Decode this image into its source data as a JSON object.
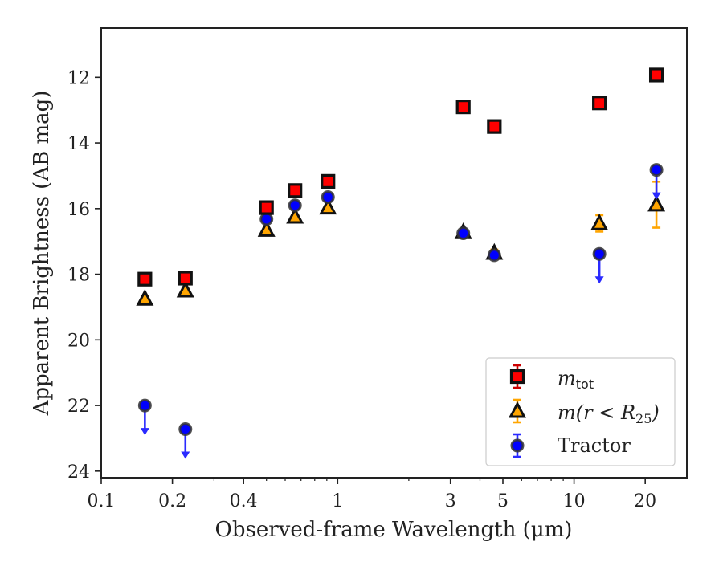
{
  "chart_data": {
    "type": "scatter",
    "title": "",
    "xlabel": "Observed-frame Wavelength (μm)",
    "ylabel": "Apparent Brightness (AB mag)",
    "xscale": "log",
    "xlim": [
      0.1,
      30
    ],
    "ylim": [
      24.2,
      10.5
    ],
    "y_inverted": true,
    "xticks": [
      0.1,
      0.2,
      0.4,
      1,
      3,
      5,
      10,
      20
    ],
    "xtick_labels": [
      "0.1",
      "0.2",
      "0.4",
      "1",
      "3",
      "5",
      "10",
      "20"
    ],
    "yticks": [
      12,
      14,
      16,
      18,
      20,
      22,
      24
    ],
    "ytick_labels": [
      "12",
      "14",
      "16",
      "18",
      "20",
      "22",
      "24"
    ],
    "grid": false,
    "legend_position": "bottom-right",
    "series": [
      {
        "name": "m_tot",
        "legend_main": "m",
        "legend_sub": "tot",
        "marker": "square",
        "color": "#ff0000",
        "edge_color": "#111111",
        "points": [
          {
            "x": 0.153,
            "y": 18.15,
            "yerr": 0.08
          },
          {
            "x": 0.227,
            "y": 18.12,
            "yerr": 0.06
          },
          {
            "x": 0.5,
            "y": 15.97,
            "yerr": 0.04
          },
          {
            "x": 0.66,
            "y": 15.45,
            "yerr": 0.04
          },
          {
            "x": 0.91,
            "y": 15.17,
            "yerr": 0.04
          },
          {
            "x": 3.4,
            "y": 12.9,
            "yerr": 0.05
          },
          {
            "x": 4.6,
            "y": 13.5,
            "yerr": 0.05
          },
          {
            "x": 12.8,
            "y": 12.78,
            "yerr": 0.05
          },
          {
            "x": 22.3,
            "y": 11.93,
            "yerr": 0.05
          }
        ]
      },
      {
        "name": "m(r < R25)",
        "legend_main": "m(r < R",
        "legend_sub": "25",
        "legend_tail": ")",
        "marker": "triangle",
        "color": "#ffa500",
        "edge_color": "#111111",
        "points": [
          {
            "x": 0.153,
            "y": 18.75,
            "yerr": 0.08
          },
          {
            "x": 0.227,
            "y": 18.5,
            "yerr": 0.06
          },
          {
            "x": 0.5,
            "y": 16.65,
            "yerr": 0.05
          },
          {
            "x": 0.66,
            "y": 16.25,
            "yerr": 0.05
          },
          {
            "x": 0.91,
            "y": 15.97,
            "yerr": 0.05
          },
          {
            "x": 3.4,
            "y": 16.72,
            "yerr": 0.08
          },
          {
            "x": 4.6,
            "y": 17.35,
            "yerr": 0.1
          },
          {
            "x": 12.8,
            "y": 16.45,
            "yerr": 0.25
          },
          {
            "x": 22.3,
            "y": 15.88,
            "yerr": 0.7
          }
        ]
      },
      {
        "name": "Tractor",
        "marker": "circle",
        "color": "#0000ff",
        "edge_color": "#333333",
        "points": [
          {
            "x": 0.153,
            "y": 22.0,
            "upper_limit": true
          },
          {
            "x": 0.227,
            "y": 22.72,
            "upper_limit": true
          },
          {
            "x": 0.5,
            "y": 16.32,
            "yerr": 0.05
          },
          {
            "x": 0.66,
            "y": 15.9,
            "yerr": 0.05
          },
          {
            "x": 0.91,
            "y": 15.65,
            "yerr": 0.05
          },
          {
            "x": 3.4,
            "y": 16.75,
            "yerr": 0.05
          },
          {
            "x": 4.6,
            "y": 17.42,
            "yerr": 0.05
          },
          {
            "x": 12.8,
            "y": 17.38,
            "upper_limit": true
          },
          {
            "x": 22.3,
            "y": 14.82,
            "upper_limit": true
          }
        ]
      }
    ]
  }
}
